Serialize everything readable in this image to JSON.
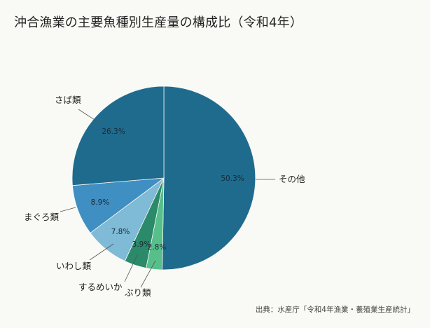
{
  "title": "沖合漁業の主要魚種別生産量の構成比（令和4年）",
  "source": "出典：水産庁「令和4年漁業・養殖業生産統計」",
  "chart_data": {
    "type": "pie",
    "title": "沖合漁業の主要魚種別生産量の構成比（令和4年）",
    "start_angle_deg": 0,
    "direction": "clockwise",
    "slices": [
      {
        "name": "その他",
        "value": 50.3,
        "label": "50.3%",
        "color": "#1f6b8e"
      },
      {
        "name": "ぶり類",
        "value": 2.8,
        "label": "2.8%",
        "color": "#56bf8a"
      },
      {
        "name": "するめいか",
        "value": 3.9,
        "label": "3.9%",
        "color": "#2a8a6a"
      },
      {
        "name": "いわし類",
        "value": 7.8,
        "label": "7.8%",
        "color": "#7fbad6"
      },
      {
        "name": "まぐろ類",
        "value": 8.9,
        "label": "8.9%",
        "color": "#3f8fc2"
      },
      {
        "name": "さば類",
        "value": 26.3,
        "label": "26.3%",
        "color": "#1f6b8e"
      }
    ]
  }
}
